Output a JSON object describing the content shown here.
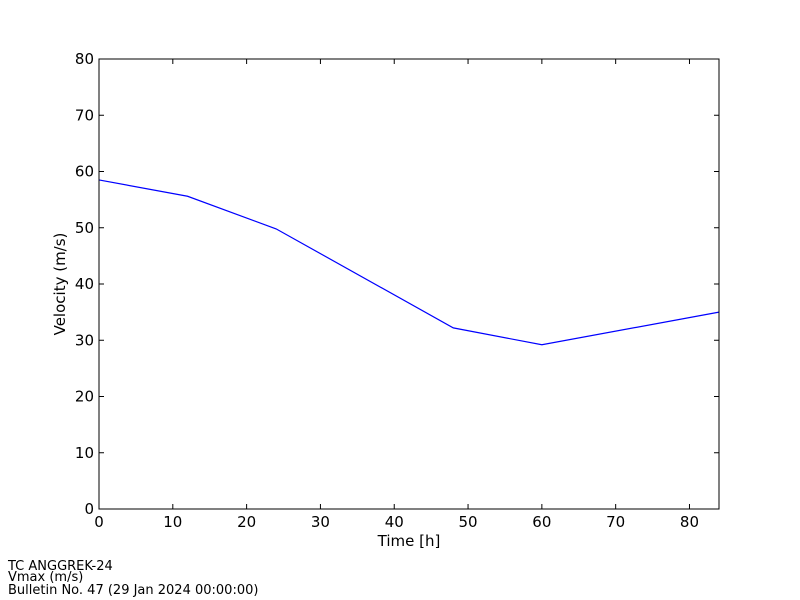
{
  "chart_data": {
    "type": "line",
    "x": [
      0,
      12,
      24,
      48,
      60,
      84
    ],
    "series": [
      {
        "color": "#0000ff",
        "values": [
          58.5,
          55.6,
          49.8,
          32.2,
          29.2,
          35.0
        ]
      }
    ],
    "xlim": [
      0,
      84
    ],
    "xticks": [
      0,
      10,
      20,
      30,
      40,
      50,
      60,
      70,
      80
    ],
    "ylim": [
      0,
      80
    ],
    "yticks": [
      0,
      10,
      20,
      30,
      40,
      50,
      60,
      70,
      80
    ],
    "xlabel": "Time [h]",
    "ylabel": "Velocity (m/s)"
  },
  "footer": [
    "TC ANGGREK-24",
    "Vmax (m/s)",
    "Bulletin No. 47 (29 Jan 2024  00:00:00)"
  ]
}
